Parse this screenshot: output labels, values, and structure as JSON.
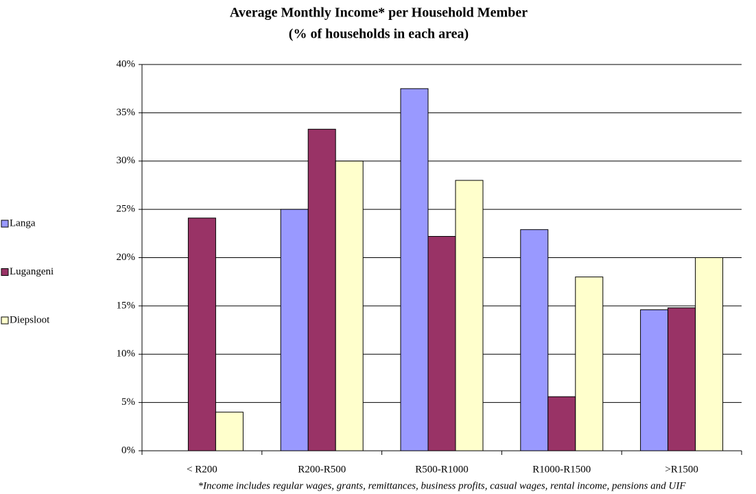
{
  "chart_data": {
    "type": "bar",
    "title": "Average Monthly Income* per Household Member",
    "subtitle": "(% of households in each area)",
    "note": "*Income includes regular wages, grants, remittances, business profits, casual wages, rental income, pensions and UIF",
    "categories": [
      "< R200",
      "R200-R500",
      "R500-R1000",
      "R1000-R1500",
      ">R1500"
    ],
    "series": [
      {
        "name": "Langa",
        "color": "#9999ff",
        "values": [
          0,
          25,
          37.5,
          22.9,
          14.6
        ]
      },
      {
        "name": "Lugangeni",
        "color": "#993366",
        "values": [
          24.1,
          33.3,
          22.2,
          5.6,
          14.8
        ]
      },
      {
        "name": "Diepsloot",
        "color": "#ffffcc",
        "values": [
          4,
          30,
          28,
          18,
          20
        ]
      }
    ],
    "ylim": [
      0,
      40
    ],
    "yticks": [
      {
        "value": 0,
        "label": "0%"
      },
      {
        "value": 5,
        "label": "5%"
      },
      {
        "value": 10,
        "label": "10%"
      },
      {
        "value": 15,
        "label": "15%"
      },
      {
        "value": 20,
        "label": "20%"
      },
      {
        "value": 25,
        "label": "25%"
      },
      {
        "value": 30,
        "label": "30%"
      },
      {
        "value": 35,
        "label": "35%"
      },
      {
        "value": 40,
        "label": "40%"
      }
    ],
    "grid": true,
    "legend": "left"
  }
}
